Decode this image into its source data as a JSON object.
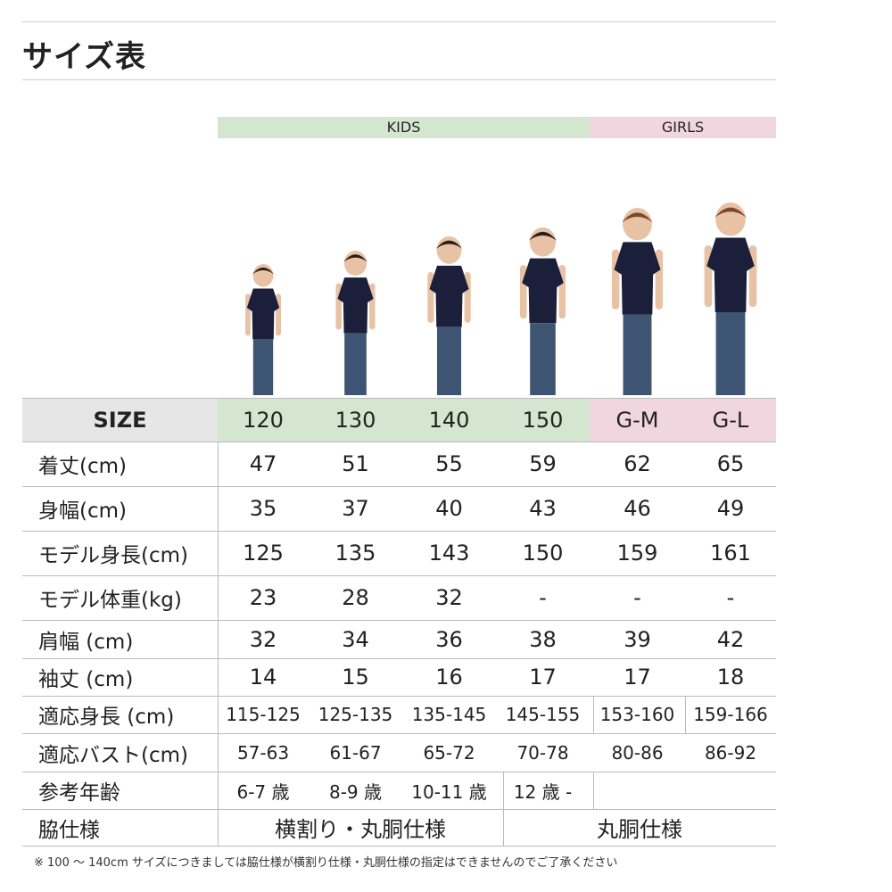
{
  "title": "サイズ表",
  "groups": {
    "kids": "KIDS",
    "girls": "GIRLS"
  },
  "colors": {
    "kids_bg": "#d5e6d0",
    "girls_bg": "#f2d6df",
    "size_label_bg": "#e6e6e6",
    "shirt": "#1c1f3a",
    "jeans": "#3d5573"
  },
  "size_row": {
    "label": "SIZE",
    "sizes": [
      "120",
      "130",
      "140",
      "150",
      "G-M",
      "G-L"
    ]
  },
  "rows": [
    {
      "label": "着丈(cm)",
      "values": [
        "47",
        "51",
        "55",
        "59",
        "62",
        "65"
      ]
    },
    {
      "label": "身幅(cm)",
      "values": [
        "35",
        "37",
        "40",
        "43",
        "46",
        "49"
      ]
    },
    {
      "label": "モデル身長(cm)",
      "values": [
        "125",
        "135",
        "143",
        "150",
        "159",
        "161"
      ]
    },
    {
      "label": "モデル体重(kg)",
      "values": [
        "23",
        "28",
        "32",
        "-",
        "-",
        "-"
      ]
    },
    {
      "label": "肩幅 (cm)",
      "values": [
        "32",
        "34",
        "36",
        "38",
        "39",
        "42"
      ]
    },
    {
      "label": "袖丈 (cm)",
      "values": [
        "14",
        "15",
        "16",
        "17",
        "17",
        "18"
      ]
    },
    {
      "label": "適応身長 (cm)",
      "values": [
        "115-125",
        "125-135",
        "135-145",
        "145-155",
        "153-160",
        "159-166"
      ]
    },
    {
      "label": "適応バスト(cm)",
      "values": [
        "57-63",
        "61-67",
        "65-72",
        "70-78",
        "80-86",
        "86-92"
      ]
    },
    {
      "label": "参考年齢",
      "values": [
        "6-7 歳",
        "8-9 歳",
        "10-11 歳",
        "12 歳 -",
        "",
        ""
      ]
    },
    {
      "label": "脇仕様",
      "merged": [
        "横割り・丸胴仕様",
        "丸胴仕様"
      ]
    }
  ],
  "note": "※ 100 〜 140cm サイズにつきましては脇仕様が横割り仕様・丸胴仕様の指定はできませんのでご了承ください"
}
